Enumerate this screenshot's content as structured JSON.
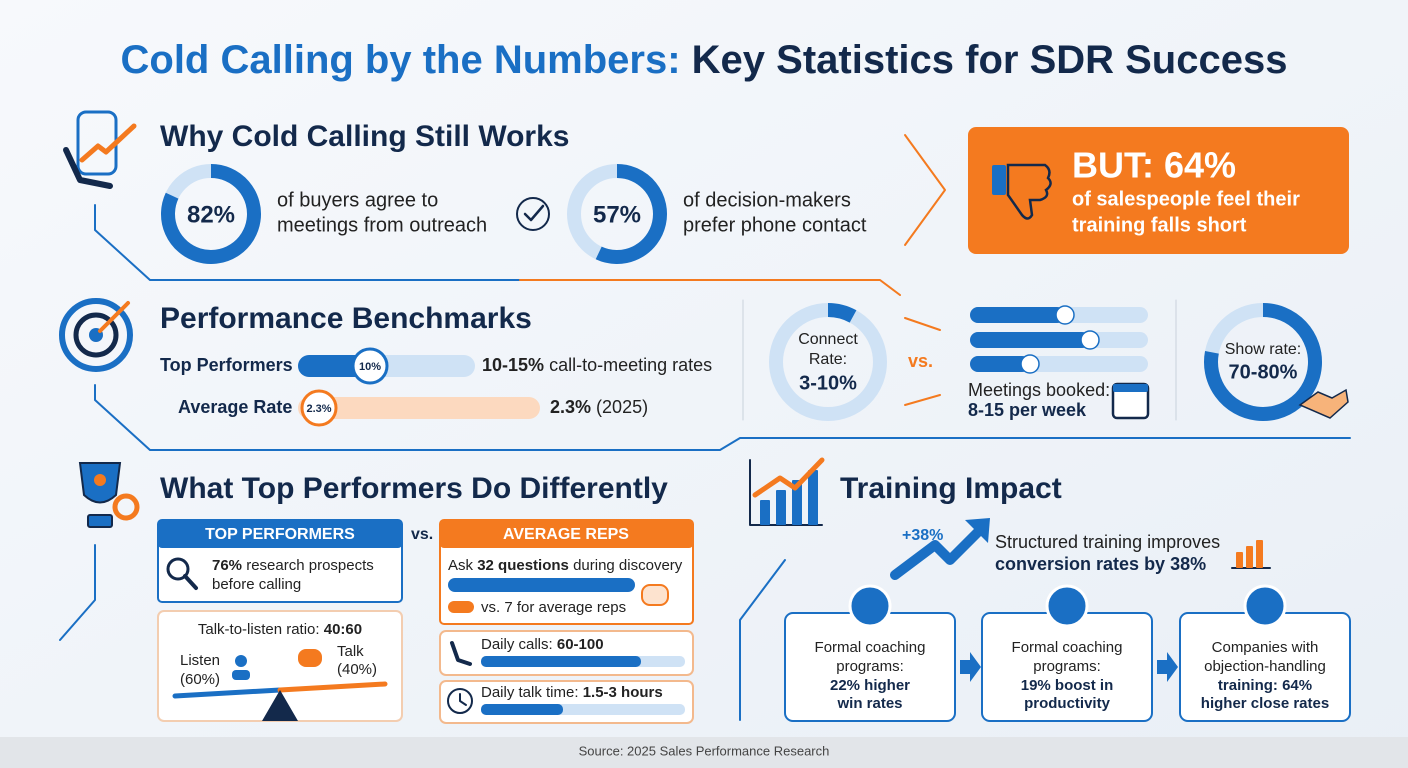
{
  "title": {
    "lead": "Cold Calling by the Numbers:",
    "rest": "Key Statistics for SDR Success"
  },
  "why": {
    "heading": "Why Cold Calling Still Works",
    "stats": [
      {
        "value": 82,
        "label": "82%",
        "lines": [
          "of buyers agree to",
          "meetings from outreach"
        ]
      },
      {
        "value": 57,
        "label": "57%",
        "lines": [
          "of decision-makers",
          "prefer phone contact"
        ]
      }
    ],
    "callout": {
      "headline": "BUT: 64%",
      "lines": [
        "of salespeople feel their",
        "training falls short"
      ]
    }
  },
  "benchmarks": {
    "heading": "Performance Benchmarks",
    "rows": [
      {
        "label": "Top Performers",
        "badge": "10%",
        "bold": "10-15%",
        "text": "call-to-meeting rates"
      },
      {
        "label": "Average Rate",
        "badge": "2.3%",
        "bold": "2.3%",
        "text": "(2025)"
      }
    ],
    "connect": {
      "lines": [
        "Connect",
        "Rate:"
      ],
      "value": "3-10%"
    },
    "vs": "vs.",
    "meetings": {
      "label": "Meetings booked:",
      "value": "8-15 per week"
    },
    "show": {
      "label": "Show rate:",
      "value": "70-80%"
    }
  },
  "differently": {
    "heading": "What Top Performers Do Differently",
    "top": {
      "header": "TOP PERFORMERS",
      "bold": "76%",
      "text": "research prospects",
      "text2": "before calling"
    },
    "vs": "vs.",
    "ratio": {
      "label": "Talk-to-listen ratio:",
      "bold": "40:60",
      "listen": [
        "Listen",
        "(60%)"
      ],
      "talk": [
        "Talk",
        "(40%)"
      ]
    },
    "average": {
      "header": "AVERAGE REPS",
      "ask": "Ask",
      "bold": "32 questions",
      "rest": "during discovery",
      "compare": "vs. 7 for average reps"
    },
    "calls": {
      "label": "Daily calls:",
      "bold": "60-100"
    },
    "talk_time": {
      "label": "Daily talk time:",
      "bold": "1.5-3 hours"
    }
  },
  "training": {
    "heading": "Training Impact",
    "lift": "+38%",
    "summary": {
      "text": "Structured training improves",
      "bold": "conversion rates by 38%"
    },
    "boxes": [
      {
        "lines": [
          "Formal coaching",
          "programs:"
        ],
        "bold": [
          "22% higher",
          "win rates"
        ]
      },
      {
        "lines": [
          "Formal coaching",
          "programs:"
        ],
        "bold": [
          "19% boost in",
          "productivity"
        ]
      },
      {
        "lines": [
          "Companies with",
          "objection-handling"
        ],
        "bold": [
          "training: 64%",
          "higher close rates"
        ]
      }
    ]
  },
  "source": "Source: 2025 Sales Performance Research"
}
